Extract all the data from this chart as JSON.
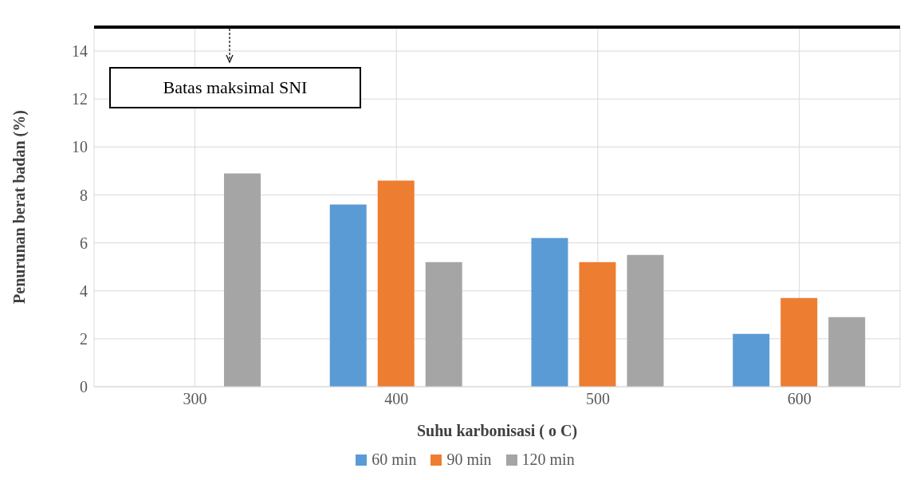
{
  "chart_data": {
    "type": "bar",
    "xlabel": "Suhu karbonisasi ( o C)",
    "ylabel": "Penurunan berat badan (%)",
    "categories": [
      "300",
      "400",
      "500",
      "600"
    ],
    "series": [
      {
        "name": "60 min",
        "color": "#5b9bd5",
        "values": [
          null,
          7.6,
          6.2,
          2.2
        ]
      },
      {
        "name": "90 min",
        "color": "#ed7d31",
        "values": [
          null,
          8.6,
          5.2,
          3.7
        ]
      },
      {
        "name": "120 min",
        "color": "#a5a5a5",
        "values": [
          8.9,
          5.2,
          5.5,
          2.9
        ]
      }
    ],
    "ylim": [
      0,
      15
    ],
    "yticks": [
      0,
      2,
      4,
      6,
      8,
      10,
      12,
      14
    ],
    "grid": true,
    "legend": "bottom",
    "ref_lines": [
      {
        "axis": "y",
        "value": 15,
        "label": "Batas maksimal SNI",
        "color": "#000000"
      }
    ]
  }
}
